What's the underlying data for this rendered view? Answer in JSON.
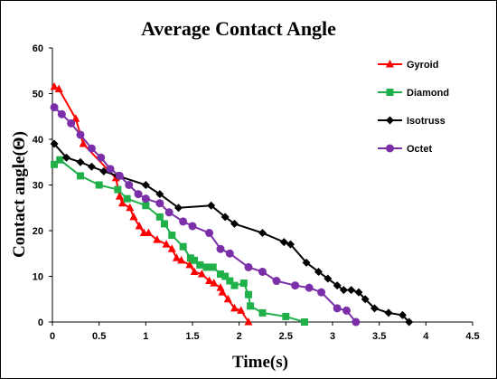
{
  "chart_data": {
    "type": "line",
    "title": "Average Contact Angle",
    "xlabel": "Time(s)",
    "ylabel": "Contact angle(Θ)",
    "xlim": [
      0,
      4.5
    ],
    "ylim": [
      0,
      60
    ],
    "x_ticks": [
      "0",
      "0.5",
      "1",
      "1.5",
      "2",
      "2.5",
      "3",
      "3.5",
      "4",
      "4.5"
    ],
    "y_ticks": [
      "0",
      "10",
      "20",
      "30",
      "40",
      "50",
      "60"
    ],
    "grid": false,
    "legend_position": "right",
    "series": [
      {
        "name": "Gyroid",
        "color": "#ff0000",
        "marker": "triangle",
        "points": [
          [
            0.02,
            51.5
          ],
          [
            0.07,
            51
          ],
          [
            0.25,
            44.5
          ],
          [
            0.33,
            39
          ],
          [
            0.68,
            31.5
          ],
          [
            0.72,
            27.5
          ],
          [
            0.75,
            26
          ],
          [
            0.83,
            25
          ],
          [
            0.87,
            23
          ],
          [
            0.93,
            21
          ],
          [
            0.98,
            19.5
          ],
          [
            1.03,
            19.5
          ],
          [
            1.12,
            18
          ],
          [
            1.22,
            17
          ],
          [
            1.28,
            16
          ],
          [
            1.33,
            14
          ],
          [
            1.38,
            13.5
          ],
          [
            1.47,
            12.5
          ],
          [
            1.52,
            11
          ],
          [
            1.6,
            10.5
          ],
          [
            1.68,
            9
          ],
          [
            1.73,
            8.5
          ],
          [
            1.8,
            7.5
          ],
          [
            1.82,
            6.5
          ],
          [
            1.88,
            5
          ],
          [
            1.95,
            3
          ],
          [
            2.02,
            2.5
          ],
          [
            2.1,
            0
          ]
        ]
      },
      {
        "name": "Diamond",
        "color": "#1fb04a",
        "marker": "square",
        "points": [
          [
            0.02,
            34.5
          ],
          [
            0.08,
            35.5
          ],
          [
            0.3,
            32
          ],
          [
            0.5,
            30
          ],
          [
            0.7,
            29
          ],
          [
            0.8,
            27
          ],
          [
            1,
            25.5
          ],
          [
            1.15,
            23
          ],
          [
            1.2,
            21.5
          ],
          [
            1.28,
            19
          ],
          [
            1.4,
            16.5
          ],
          [
            1.48,
            14
          ],
          [
            1.52,
            13.5
          ],
          [
            1.58,
            12.5
          ],
          [
            1.65,
            12
          ],
          [
            1.72,
            12
          ],
          [
            1.8,
            10.5
          ],
          [
            1.85,
            10
          ],
          [
            1.9,
            9
          ],
          [
            1.95,
            8
          ],
          [
            2.05,
            8.5
          ],
          [
            2.1,
            6
          ],
          [
            2.12,
            3.5
          ],
          [
            2.25,
            2
          ],
          [
            2.5,
            1.2
          ],
          [
            2.7,
            0
          ]
        ]
      },
      {
        "name": "Isotruss",
        "color": "#000000",
        "marker": "diamond",
        "points": [
          [
            0.02,
            39
          ],
          [
            0.15,
            36
          ],
          [
            0.3,
            35
          ],
          [
            0.42,
            34
          ],
          [
            0.55,
            33
          ],
          [
            0.7,
            32
          ],
          [
            1,
            30
          ],
          [
            1.15,
            28
          ],
          [
            1.35,
            25
          ],
          [
            1.7,
            25.5
          ],
          [
            1.85,
            23
          ],
          [
            1.95,
            21.5
          ],
          [
            2.25,
            19.5
          ],
          [
            2.48,
            17.5
          ],
          [
            2.55,
            17
          ],
          [
            2.72,
            13
          ],
          [
            2.85,
            11
          ],
          [
            2.95,
            9.5
          ],
          [
            3.05,
            8
          ],
          [
            3.12,
            7
          ],
          [
            3.2,
            7
          ],
          [
            3.28,
            6.5
          ],
          [
            3.35,
            5
          ],
          [
            3.45,
            3
          ],
          [
            3.6,
            2
          ],
          [
            3.75,
            1.5
          ],
          [
            3.82,
            0
          ]
        ]
      },
      {
        "name": "Octet",
        "color": "#7a2fa8",
        "marker": "circle",
        "points": [
          [
            0.02,
            47
          ],
          [
            0.1,
            45.5
          ],
          [
            0.2,
            43.5
          ],
          [
            0.3,
            41
          ],
          [
            0.42,
            38
          ],
          [
            0.52,
            36
          ],
          [
            0.62,
            33.5
          ],
          [
            0.72,
            32
          ],
          [
            0.82,
            30
          ],
          [
            0.92,
            28
          ],
          [
            1,
            27
          ],
          [
            1.15,
            26
          ],
          [
            1.25,
            24
          ],
          [
            1.4,
            22
          ],
          [
            1.5,
            21
          ],
          [
            1.68,
            19.5
          ],
          [
            1.8,
            16
          ],
          [
            1.9,
            15
          ],
          [
            2.1,
            12
          ],
          [
            2.25,
            11
          ],
          [
            2.4,
            9
          ],
          [
            2.6,
            8
          ],
          [
            2.75,
            7.5
          ],
          [
            2.88,
            6.5
          ],
          [
            3.05,
            3
          ],
          [
            3.15,
            2.5
          ],
          [
            3.25,
            0
          ]
        ]
      }
    ]
  }
}
